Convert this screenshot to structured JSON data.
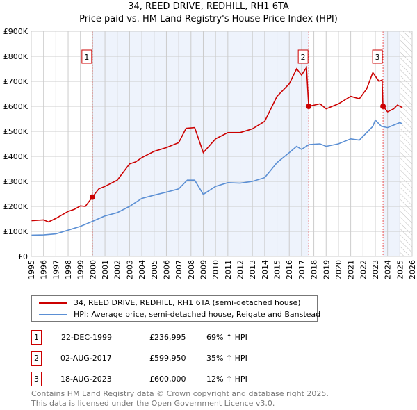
{
  "chart_data": {
    "type": "line",
    "title": "34, REED DRIVE, REDHILL, RH1 6TA",
    "subtitle": "Price paid vs. HM Land Registry's House Price Index (HPI)",
    "xlim": [
      1995,
      2026
    ],
    "ylim": [
      0,
      900000
    ],
    "x_ticks": [
      "1995",
      "1996",
      "1997",
      "1998",
      "1999",
      "2000",
      "2001",
      "2002",
      "2003",
      "2004",
      "2005",
      "2006",
      "2007",
      "2008",
      "2009",
      "2010",
      "2011",
      "2012",
      "2013",
      "2014",
      "2015",
      "2016",
      "2017",
      "2018",
      "2019",
      "2020",
      "2021",
      "2022",
      "2023",
      "2024",
      "2025",
      "2026"
    ],
    "y_ticks": [
      {
        "v": 0,
        "l": "£0"
      },
      {
        "v": 100000,
        "l": "£100K"
      },
      {
        "v": 200000,
        "l": "£200K"
      },
      {
        "v": 300000,
        "l": "£300K"
      },
      {
        "v": 400000,
        "l": "£400K"
      },
      {
        "v": 500000,
        "l": "£500K"
      },
      {
        "v": 600000,
        "l": "£600K"
      },
      {
        "v": 700000,
        "l": "£700K"
      },
      {
        "v": 800000,
        "l": "£800K"
      },
      {
        "v": 900000,
        "l": "£900K"
      }
    ],
    "grid": true,
    "series": [
      {
        "name": "34, REED DRIVE, REDHILL, RH1 6TA (semi-detached house)",
        "color": "#cc0000",
        "x": [
          1995,
          1996,
          1996.4,
          1997,
          1998,
          1998.5,
          1999,
          1999.4,
          1999.97,
          2000.5,
          2001,
          2002,
          2003,
          2003.5,
          2004,
          2005,
          2006,
          2007,
          2007.6,
          2008.3,
          2009,
          2010,
          2011,
          2012,
          2013,
          2014,
          2015,
          2016,
          2016.6,
          2017,
          2017.4,
          2017.58,
          2018.5,
          2019,
          2020,
          2021,
          2021.7,
          2022.3,
          2022.8,
          2023.3,
          2023.55,
          2023.63,
          2024,
          2024.5,
          2024.8,
          2025.2
        ],
        "y": [
          143000,
          146000,
          138000,
          152000,
          180000,
          188000,
          202000,
          200000,
          236995,
          270000,
          280000,
          305000,
          370000,
          378000,
          395000,
          420000,
          435000,
          455000,
          512000,
          515000,
          415000,
          470000,
          495000,
          495000,
          510000,
          540000,
          640000,
          690000,
          750000,
          725000,
          755000,
          599950,
          610000,
          590000,
          610000,
          640000,
          630000,
          670000,
          735000,
          700000,
          705000,
          600000,
          578000,
          590000,
          605000,
          595000
        ]
      },
      {
        "name": "HPI: Average price, semi-detached house, Reigate and Banstead",
        "color": "#5b8fd4",
        "x": [
          1995,
          1996,
          1997,
          1998,
          1999,
          1999.97,
          2001,
          2002,
          2003,
          2004,
          2005,
          2006,
          2007,
          2007.7,
          2008.3,
          2009,
          2010,
          2011,
          2012,
          2013,
          2014,
          2015,
          2016,
          2016.6,
          2017,
          2017.6,
          2018.5,
          2019,
          2020,
          2021,
          2021.7,
          2022.3,
          2022.8,
          2023.0,
          2023.5,
          2024,
          2024.5,
          2025,
          2025.2
        ],
        "y": [
          85000,
          86000,
          90000,
          105000,
          120000,
          140000,
          162000,
          175000,
          200000,
          232000,
          245000,
          257000,
          270000,
          305000,
          305000,
          248000,
          280000,
          295000,
          293000,
          300000,
          315000,
          375000,
          415000,
          440000,
          428000,
          447000,
          450000,
          440000,
          450000,
          470000,
          465000,
          495000,
          520000,
          545000,
          520000,
          515000,
          525000,
          535000,
          530000
        ]
      }
    ],
    "sales": [
      {
        "id": "1",
        "x": 1999.97,
        "y": 236995,
        "date": "22-DEC-1999",
        "price": "£236,995",
        "hpi": "69% ↑ HPI"
      },
      {
        "id": "2",
        "x": 2017.58,
        "y": 599950,
        "date": "02-AUG-2017",
        "price": "£599,950",
        "hpi": "35% ↑ HPI"
      },
      {
        "id": "3",
        "x": 2023.63,
        "y": 600000,
        "date": "18-AUG-2023",
        "price": "£600,000",
        "hpi": "12% ↑ HPI"
      }
    ],
    "legend_placement": "below"
  },
  "footer": [
    "Contains HM Land Registry data © Crown copyright and database right 2025.",
    "This data is licensed under the Open Government Licence v3.0."
  ]
}
